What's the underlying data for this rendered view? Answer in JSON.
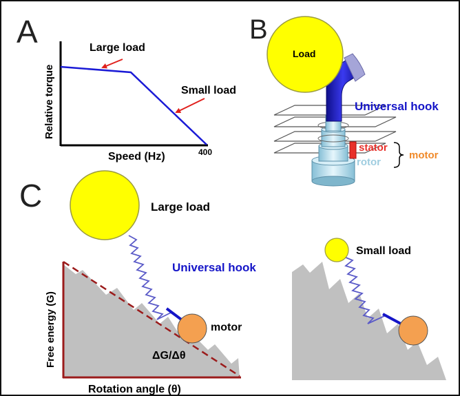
{
  "panels": {
    "a": {
      "letter": "A",
      "ylabel": "Relative torque",
      "xlabel": "Speed (Hz)",
      "tick": "400",
      "large_load": "Large load",
      "small_load": "Small load"
    },
    "b": {
      "letter": "B",
      "load": "Load",
      "hook": "Universal hook",
      "stator": "stator",
      "rotor": "rotor",
      "motor": "motor"
    },
    "c": {
      "letter": "C",
      "large_load": "Large load",
      "hook": "Universal hook",
      "motor": "motor",
      "ylabel": "Free energy (G)",
      "xlabel": "Rotation angle (θ)",
      "slope": "ΔG/Δθ",
      "small_load": "Small load"
    }
  },
  "colors": {
    "load": "#ffff00",
    "hook": "#1515c8",
    "curve": "#1a1ad6",
    "arrow": "#e0201c",
    "motor_ball": "#f4a050",
    "motor_text": "#f08a2a",
    "stator": "#e8302a",
    "rotor": "#9fcde0",
    "energy": "#c0c0c0",
    "axis_red": "#9b1b1b"
  }
}
